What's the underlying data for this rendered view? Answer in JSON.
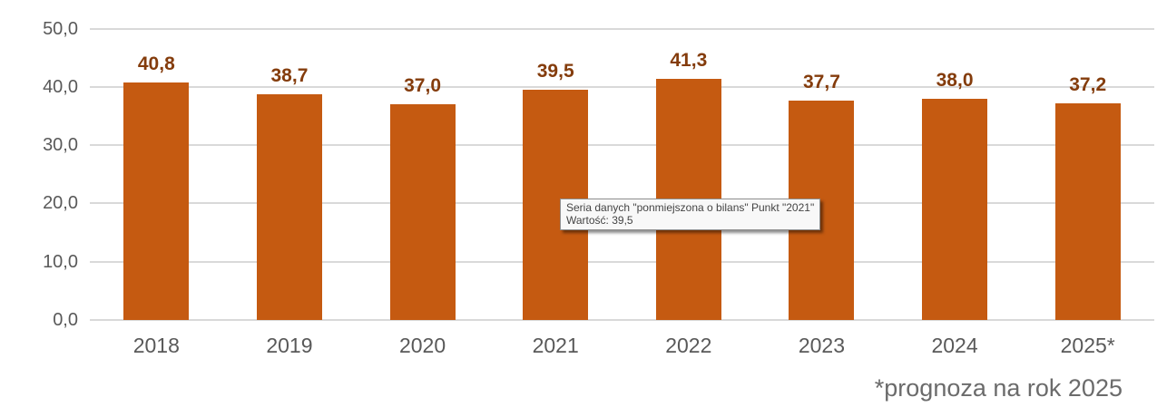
{
  "chart_data": {
    "type": "bar",
    "categories": [
      "2018",
      "2019",
      "2020",
      "2021",
      "2022",
      "2023",
      "2024",
      "2025*"
    ],
    "series": [
      {
        "name": "ponmiejszona o bilans",
        "values": [
          40.8,
          38.7,
          37.0,
          39.5,
          41.3,
          37.7,
          38.0,
          37.2
        ]
      }
    ],
    "data_labels": [
      "40,8",
      "38,7",
      "37,0",
      "39,5",
      "41,3",
      "37,7",
      "38,0",
      "37,2"
    ],
    "title": "",
    "xlabel": "",
    "ylabel": "",
    "ylim": [
      0,
      50
    ],
    "grid": true,
    "legend": "none",
    "y_axis": {
      "ticks": [
        {
          "label": "0,0",
          "value": 0
        },
        {
          "label": "10,0",
          "value": 10
        },
        {
          "label": "20,0",
          "value": 20
        },
        {
          "label": "30,0",
          "value": 30
        },
        {
          "label": "40,0",
          "value": 40
        },
        {
          "label": "50,0",
          "value": 50
        }
      ]
    },
    "colors": {
      "bar": "#C55A11",
      "data_label": "#843C0C",
      "axis_text": "#595959",
      "gridline": "#D9D9D9",
      "footnote_text": "#6b6b6b"
    }
  },
  "tooltip": {
    "line1": "Seria danych \"ponmiejszona o bilans\" Punkt \"2021\"",
    "line2": "Wartość: 39,5"
  },
  "footnote": "*prognoza na rok 2025"
}
